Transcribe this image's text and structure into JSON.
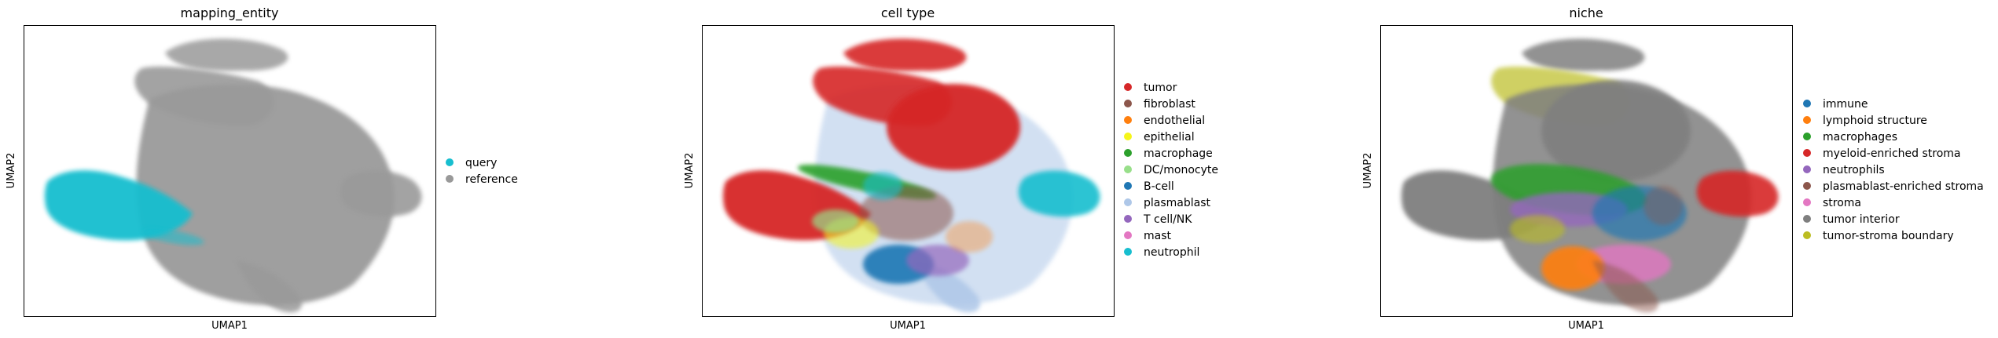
{
  "figure": {
    "panels": [
      {
        "title": "mapping_entity",
        "xlabel": "UMAP1",
        "ylabel": "UMAP2",
        "legend": [
          {
            "label": "query",
            "color": "#17becf"
          },
          {
            "label": "reference",
            "color": "#999999"
          }
        ]
      },
      {
        "title": "cell type",
        "xlabel": "UMAP1",
        "ylabel": "UMAP2",
        "legend": [
          {
            "label": "tumor",
            "color": "#d62728"
          },
          {
            "label": "fibroblast",
            "color": "#8c564b"
          },
          {
            "label": "endothelial",
            "color": "#ff7f0e"
          },
          {
            "label": "epithelial",
            "color": "#f5f51a"
          },
          {
            "label": "macrophage",
            "color": "#2ca02c"
          },
          {
            "label": "DC/monocyte",
            "color": "#98df8a"
          },
          {
            "label": "B-cell",
            "color": "#1f77b4"
          },
          {
            "label": "plasmablast",
            "color": "#aec7e8"
          },
          {
            "label": "T cell/NK",
            "color": "#9467bd"
          },
          {
            "label": "mast",
            "color": "#e377c2"
          },
          {
            "label": "neutrophil",
            "color": "#17becf"
          }
        ]
      },
      {
        "title": "niche",
        "xlabel": "UMAP1",
        "ylabel": "UMAP2",
        "legend": [
          {
            "label": "immune",
            "color": "#1f77b4"
          },
          {
            "label": "lymphoid structure",
            "color": "#ff7f0e"
          },
          {
            "label": "macrophages",
            "color": "#2ca02c"
          },
          {
            "label": "myeloid-enriched stroma",
            "color": "#d62728"
          },
          {
            "label": "neutrophils",
            "color": "#9467bd"
          },
          {
            "label": "plasmablast-enriched stroma",
            "color": "#8c564b"
          },
          {
            "label": "stroma",
            "color": "#e377c2"
          },
          {
            "label": "tumor interior",
            "color": "#7f7f7f"
          },
          {
            "label": "tumor-stroma boundary",
            "color": "#bcbd22"
          }
        ]
      }
    ]
  },
  "chart_data": [
    {
      "type": "scatter",
      "title": "mapping_entity",
      "xlabel": "UMAP1",
      "ylabel": "UMAP2",
      "grid": false,
      "legend_position": "right",
      "series": [
        {
          "name": "query",
          "color": "#17becf"
        },
        {
          "name": "reference",
          "color": "#999999"
        }
      ]
    },
    {
      "type": "scatter",
      "title": "cell type",
      "xlabel": "UMAP1",
      "ylabel": "UMAP2",
      "grid": false,
      "legend_position": "right",
      "series": [
        {
          "name": "tumor",
          "color": "#d62728"
        },
        {
          "name": "fibroblast",
          "color": "#8c564b"
        },
        {
          "name": "endothelial",
          "color": "#ff7f0e"
        },
        {
          "name": "epithelial",
          "color": "#f5f51a"
        },
        {
          "name": "macrophage",
          "color": "#2ca02c"
        },
        {
          "name": "DC/monocyte",
          "color": "#98df8a"
        },
        {
          "name": "B-cell",
          "color": "#1f77b4"
        },
        {
          "name": "plasmablast",
          "color": "#aec7e8"
        },
        {
          "name": "T cell/NK",
          "color": "#9467bd"
        },
        {
          "name": "mast",
          "color": "#e377c2"
        },
        {
          "name": "neutrophil",
          "color": "#17becf"
        }
      ]
    },
    {
      "type": "scatter",
      "title": "niche",
      "xlabel": "UMAP1",
      "ylabel": "UMAP2",
      "grid": false,
      "legend_position": "right",
      "series": [
        {
          "name": "immune",
          "color": "#1f77b4"
        },
        {
          "name": "lymphoid structure",
          "color": "#ff7f0e"
        },
        {
          "name": "macrophages",
          "color": "#2ca02c"
        },
        {
          "name": "myeloid-enriched stroma",
          "color": "#d62728"
        },
        {
          "name": "neutrophils",
          "color": "#9467bd"
        },
        {
          "name": "plasmablast-enriched stroma",
          "color": "#8c564b"
        },
        {
          "name": "stroma",
          "color": "#e377c2"
        },
        {
          "name": "tumor interior",
          "color": "#7f7f7f"
        },
        {
          "name": "tumor-stroma boundary",
          "color": "#bcbd22"
        }
      ]
    }
  ]
}
